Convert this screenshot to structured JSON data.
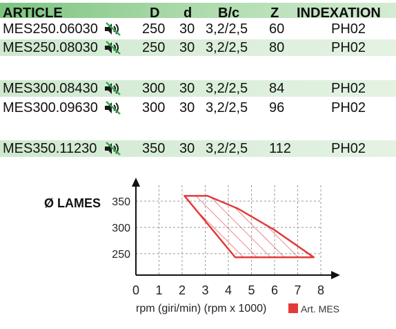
{
  "table": {
    "headers": {
      "article": "ARTICLE",
      "D": "D",
      "d": "d",
      "bc": "B/c",
      "z": "Z",
      "indexation": "INDEXATION"
    },
    "rows": [
      {
        "article": "MES250.06030",
        "D": "250",
        "d": "30",
        "bc": "3,2/2,5",
        "z": "60",
        "indexation": "PH02"
      },
      {
        "article": "MES250.08030",
        "D": "250",
        "d": "30",
        "bc": "3,2/2,5",
        "z": "80",
        "indexation": "PH02"
      },
      {
        "article": "MES300.08430",
        "D": "300",
        "d": "30",
        "bc": "3,2/2,5",
        "z": "84",
        "indexation": "PH02"
      },
      {
        "article": "MES300.09630",
        "D": "300",
        "d": "30",
        "bc": "3,2/2,5",
        "z": "96",
        "indexation": "PH02"
      },
      {
        "article": "MES350.11230",
        "D": "350",
        "d": "30",
        "bc": "3,2/2,5",
        "z": "112",
        "indexation": "PH02"
      }
    ],
    "icon": "silent-blade-icon"
  },
  "chart_data": {
    "type": "area",
    "title": "",
    "xlabel": "rpm (giri/min) (rpm x 1000)",
    "ylabel": "Ø LAMES",
    "xlim": [
      0,
      8
    ],
    "ylim": [
      200,
      380
    ],
    "xticks": [
      "0",
      "1",
      "2",
      "3",
      "4",
      "5",
      "6",
      "7",
      "8"
    ],
    "yticks": [
      "250",
      "300",
      "350"
    ],
    "grid": true,
    "legend": "bottom-right",
    "series": [
      {
        "name": "Art. MES",
        "color": "#e23a3a",
        "hatched": true,
        "x": [
          2.1,
          3.1,
          4.4,
          6.0,
          7.7,
          4.3
        ],
        "y": [
          360,
          360,
          336,
          295,
          243,
          243
        ]
      }
    ]
  }
}
